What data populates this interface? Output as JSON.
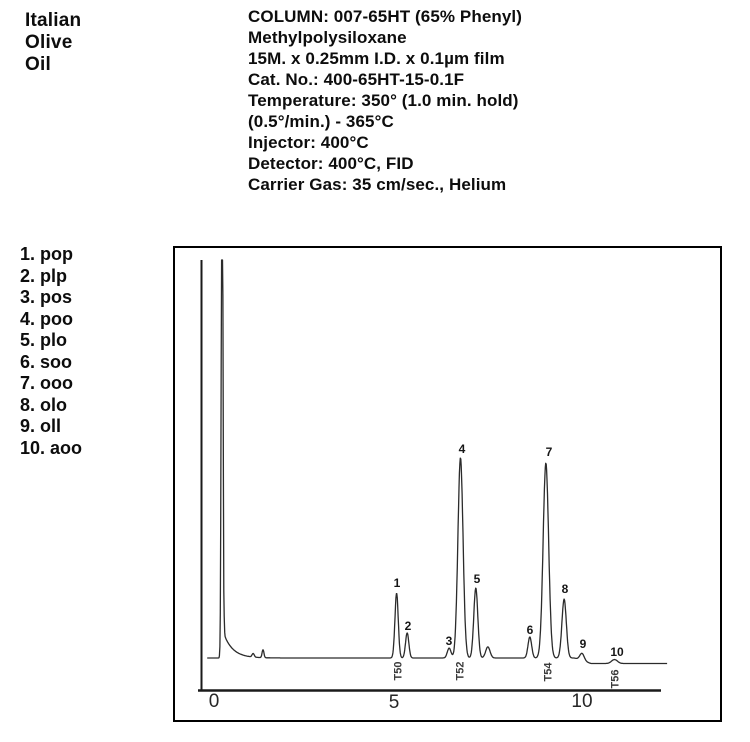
{
  "colors": {
    "background": "#ffffff",
    "ink": "#0d0d0d",
    "trace": "#2b2b2b",
    "axis": "#1a1a1a",
    "frame": "#000000"
  },
  "sample": {
    "name_lines": [
      "Italian",
      "Olive",
      "Oil"
    ]
  },
  "method": {
    "lines": [
      "COLUMN: 007-65HT (65% Phenyl)",
      "Methylpolysiloxane",
      "15M. x 0.25mm I.D. x 0.1µm film",
      "Cat. No.: 400-65HT-15-0.1F",
      "Temperature: 350° (1.0 min. hold)",
      "(0.5°/min.) - 365°C",
      "Injector: 400°C",
      "Detector: 400°C, FID",
      "Carrier Gas: 35 cm/sec., Helium"
    ]
  },
  "peak_list": {
    "items": [
      "1. pop",
      "2. plp",
      "3. pos",
      "4. poo",
      "5. plo",
      "6. soo",
      "7. ooo",
      "8. olo",
      "9. oll",
      "10. aoo"
    ]
  },
  "chart_data": {
    "type": "line",
    "title": "",
    "xlabel": "",
    "ylabel": "",
    "x_range_min": [
      0,
      12.5
    ],
    "grid": false,
    "legend_position": "none",
    "x_axis": {
      "ticks": [
        {
          "label": "0",
          "t": 0
        },
        {
          "label": "5",
          "t": 5
        },
        {
          "label": "10",
          "t": 10
        }
      ]
    },
    "peaks": [
      {
        "label": "1",
        "name": "pop",
        "rt_min": 5.03,
        "height_units": 16.3,
        "sigma_min": 0.045
      },
      {
        "label": "2",
        "name": "plp",
        "rt_min": 5.32,
        "height_units": 6.3,
        "sigma_min": 0.045
      },
      {
        "label": "3",
        "name": "pos",
        "rt_min": 6.47,
        "height_units": 2.5,
        "sigma_min": 0.05
      },
      {
        "label": "4",
        "name": "poo",
        "rt_min": 6.78,
        "height_units": 50.3,
        "sigma_min": 0.07
      },
      {
        "label": "5",
        "name": "plo",
        "rt_min": 7.2,
        "height_units": 17.6,
        "sigma_min": 0.055
      },
      {
        "label": "6",
        "name": "soo",
        "rt_min": 8.68,
        "height_units": 5.3,
        "sigma_min": 0.05
      },
      {
        "label": "7",
        "name": "ooo",
        "rt_min": 9.12,
        "height_units": 49.0,
        "sigma_min": 0.075
      },
      {
        "label": "8",
        "name": "olo",
        "rt_min": 9.62,
        "height_units": 14.8,
        "sigma_min": 0.06
      },
      {
        "label": "9",
        "name": "oll",
        "rt_min": 10.11,
        "height_units": 1.8,
        "sigma_min": 0.06
      },
      {
        "label": "10",
        "name": "aoo",
        "rt_min": 11.0,
        "height_units": 1.0,
        "sigma_min": 0.08
      }
    ],
    "solvent": {
      "rt_min": 0.25,
      "clipped": true,
      "height_units": 150,
      "sigma_min": 0.022,
      "tail_units": 6,
      "tail_tau_min": 0.25
    },
    "unlabeled_features": [
      {
        "rt_min": 1.1,
        "height_units": 0.9,
        "sigma_min": 0.03
      },
      {
        "rt_min": 1.37,
        "height_units": 2.0,
        "sigma_min": 0.025
      },
      {
        "rt_min": 7.53,
        "height_units": 2.8,
        "sigma_min": 0.06
      }
    ],
    "t_markers": [
      {
        "label": "T50",
        "rt_min": 5.07
      },
      {
        "label": "T52",
        "rt_min": 6.77
      },
      {
        "label": "T54",
        "rt_min": 9.18
      },
      {
        "label": "T56",
        "rt_min": 11.0
      }
    ]
  }
}
